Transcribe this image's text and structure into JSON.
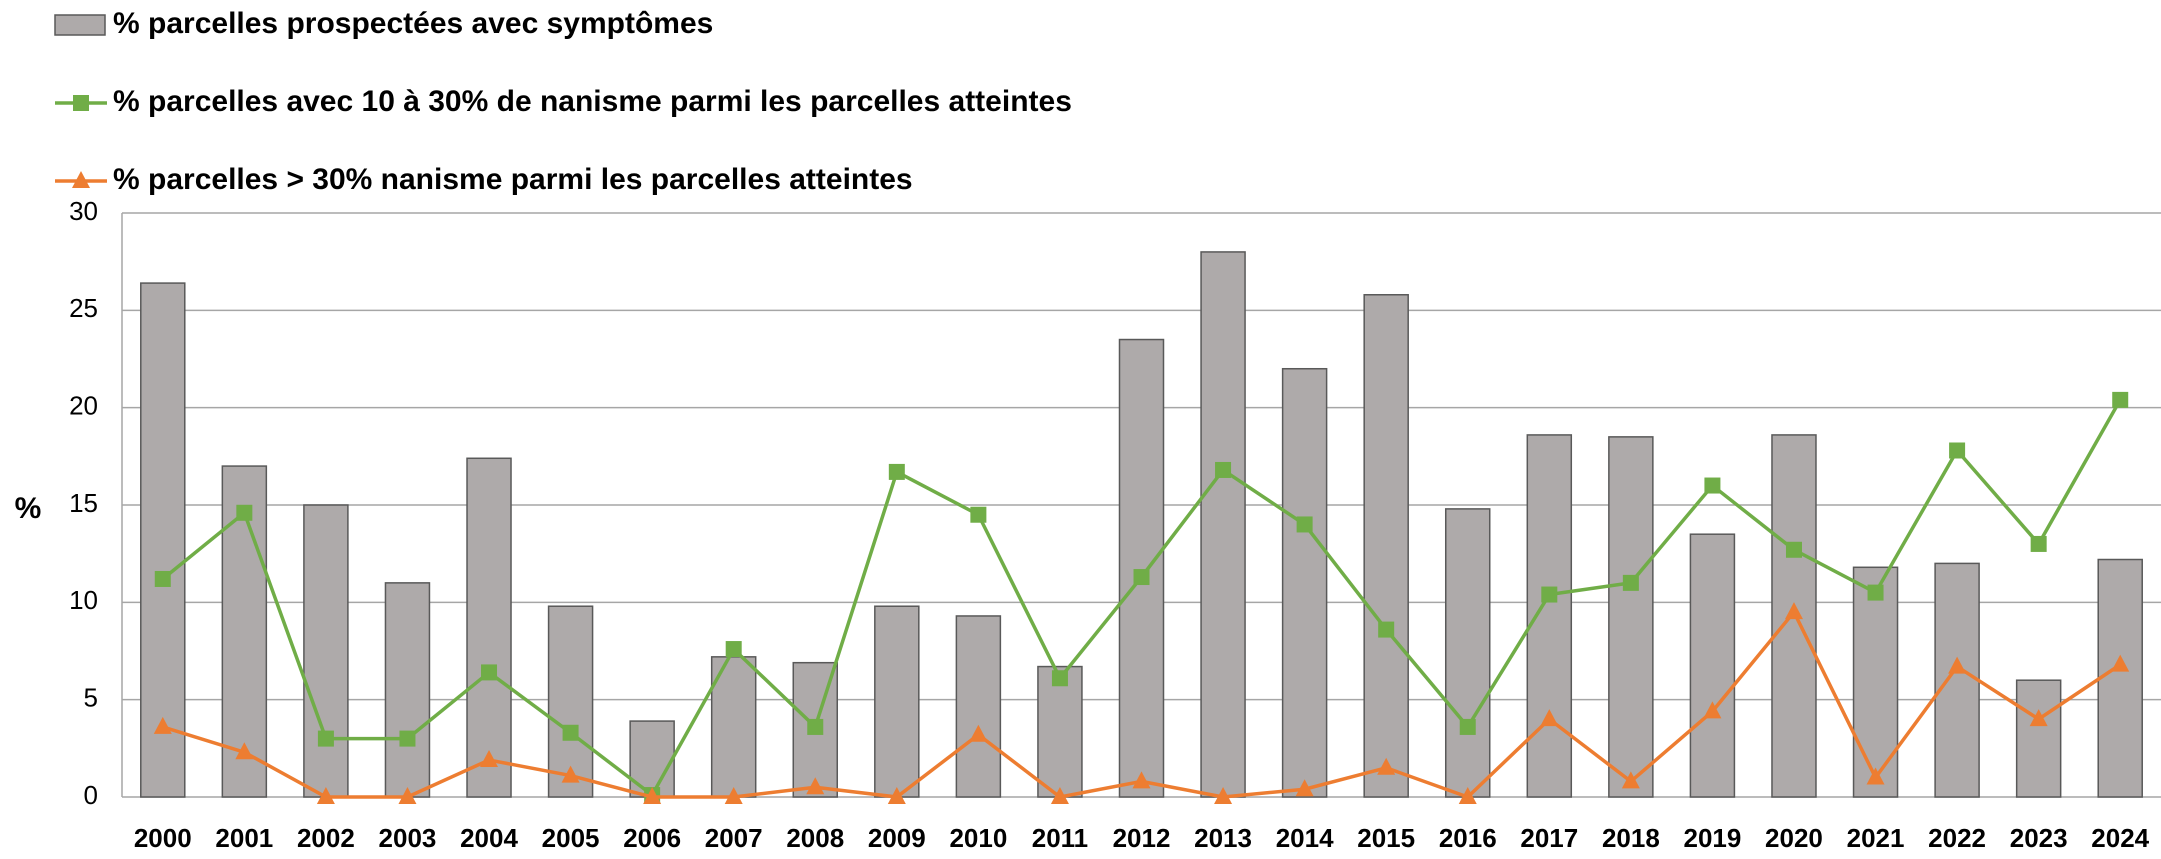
{
  "chart_data": {
    "type": "bar_line",
    "ylabel": "%",
    "categories": [
      "2000",
      "2001",
      "2002",
      "2003",
      "2004",
      "2005",
      "2006",
      "2007",
      "2008",
      "2009",
      "2010",
      "2011",
      "2012",
      "2013",
      "2014",
      "2015",
      "2016",
      "2017",
      "2018",
      "2019",
      "2020",
      "2021",
      "2022",
      "2023",
      "2024"
    ],
    "series": [
      {
        "name": "% parcelles prospectées avec symptômes",
        "color": "#aeaaaa",
        "kind": "bar",
        "values": [
          26.4,
          17,
          15,
          11,
          17.4,
          9.8,
          3.9,
          7.2,
          6.9,
          9.8,
          9.3,
          6.7,
          23.5,
          28,
          22,
          25.8,
          14.8,
          18.6,
          18.5,
          13.5,
          18.6,
          11.8,
          12,
          6,
          12.2
        ]
      },
      {
        "name": "% parcelles avec 10 à 30% de nanisme parmi les parcelles atteintes",
        "color": "#70ad47",
        "kind": "line",
        "marker": "square",
        "values": [
          11.2,
          14.6,
          3,
          3,
          6.4,
          3.3,
          0.1,
          7.6,
          3.6,
          16.7,
          14.5,
          6.1,
          11.3,
          16.8,
          14,
          8.6,
          3.6,
          10.4,
          11,
          16,
          12.7,
          10.5,
          17.8,
          13,
          20.4
        ]
      },
      {
        "name": "% parcelles > 30% nanisme parmi les parcelles atteintes",
        "color": "#ed7d31",
        "kind": "line",
        "marker": "triangle",
        "values": [
          3.6,
          2.3,
          0,
          0,
          1.9,
          1.1,
          0,
          0,
          0.5,
          0,
          3.2,
          0,
          0.8,
          0,
          0.4,
          1.5,
          0,
          4,
          0.8,
          4.4,
          9.5,
          1,
          6.7,
          4,
          6.8
        ]
      }
    ],
    "ylim": [
      0,
      30
    ],
    "yticks": [
      0,
      5,
      10,
      15,
      20,
      25,
      30
    ],
    "grid": true,
    "legend": "top-left"
  }
}
